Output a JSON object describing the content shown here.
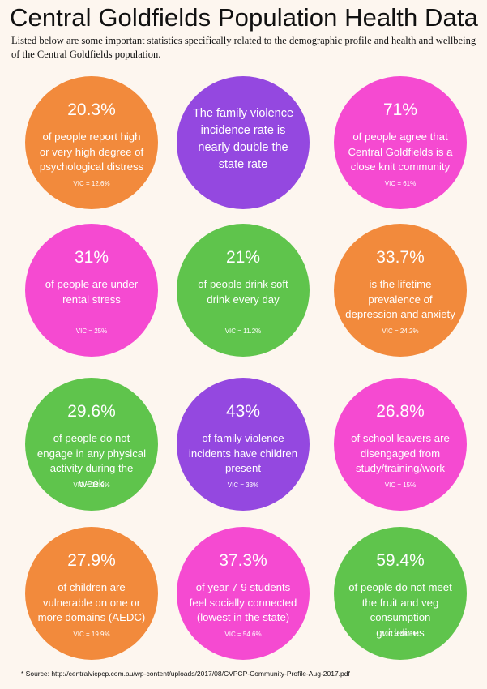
{
  "header": {
    "title": "Central Goldfields Population Health Data",
    "subtitle": "Listed below are some important statistics specifically related to the demographic profile and health and wellbeing of the Central Goldfields population."
  },
  "colors": {
    "orange": "#f28a3c",
    "purple": "#9448e0",
    "magenta": "#f54ad1",
    "green": "#5fc44c",
    "background": "#fdf6ef"
  },
  "stats": [
    {
      "value": "20.3%",
      "description": "of people report high or very high degree of psychological distress",
      "vic": "VIC = 12.6%",
      "color": "orange"
    },
    {
      "value": "The family violence incidence rate is nearly double the state rate",
      "description": "",
      "vic": "",
      "color": "purple"
    },
    {
      "value": "71%",
      "description": "of people agree that Central Goldfields is a close knit community",
      "vic": "VIC = 61%",
      "color": "magenta"
    },
    {
      "value": "31%",
      "description": "of people are under rental stress",
      "vic": "VIC = 25%",
      "color": "magenta"
    },
    {
      "value": "21%",
      "description": "of people drink soft drink every day",
      "vic": "VIC = 11.2%",
      "color": "green"
    },
    {
      "value": "33.7%",
      "description": "is the lifetime prevalence of depression and anxiety",
      "vic": "VIC = 24.2%",
      "color": "orange"
    },
    {
      "value": "29.6%",
      "description": "of people do not engage in any physical activity during the week",
      "vic": "VIC = 18.9%",
      "color": "green"
    },
    {
      "value": "43%",
      "description": "of family violence incidents have children present",
      "vic": "VIC = 33%",
      "color": "purple"
    },
    {
      "value": "26.8%",
      "description": "of school leavers are disengaged from study/training/work",
      "vic": "VIC = 15%",
      "color": "magenta"
    },
    {
      "value": "27.9%",
      "description": "of children are vulnerable on one or more domains (AEDC)",
      "vic": "VIC = 19.9%",
      "color": "orange"
    },
    {
      "value": "37.3%",
      "description": "of year 7-9 students feel socially connected (lowest in the state)",
      "vic": "VIC = 54.6%",
      "color": "magenta"
    },
    {
      "value": "59.4%",
      "description": "of people do not meet the fruit and veg consumption guidelines",
      "vic": "VIC = 48.6%",
      "color": "green"
    }
  ],
  "footer": {
    "source": "* Source: http://centralvicpcp.com.au/wp-content/uploads/2017/08/CVPCP-Community-Profile-Aug-2017.pdf"
  }
}
